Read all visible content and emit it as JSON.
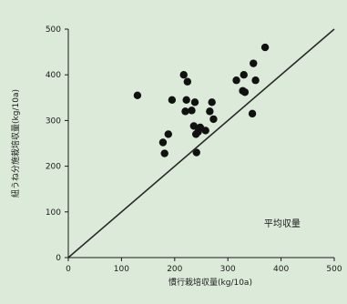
{
  "chart_data": {
    "type": "scatter",
    "title": "",
    "xlabel": "慣行栽培収量(kg/10a)",
    "ylabel": "紐うね分施栽培収量(kg/10a)",
    "xlim": [
      0,
      500
    ],
    "ylim": [
      0,
      500
    ],
    "x_ticks": [
      "0",
      "100",
      "200",
      "300",
      "400",
      "500"
    ],
    "y_ticks": [
      "0",
      "100",
      "200",
      "300",
      "400",
      "500"
    ],
    "grid": false,
    "reference_line": {
      "from": [
        0,
        0
      ],
      "to": [
        500,
        500
      ]
    },
    "annotation": "平均収量",
    "colors": {
      "background": "#dcebd9",
      "points": "#111111",
      "line": "#2a2a2a"
    },
    "points": [
      {
        "x": 130,
        "y": 355
      },
      {
        "x": 178,
        "y": 252
      },
      {
        "x": 181,
        "y": 228
      },
      {
        "x": 188,
        "y": 270
      },
      {
        "x": 195,
        "y": 345
      },
      {
        "x": 217,
        "y": 400
      },
      {
        "x": 220,
        "y": 320
      },
      {
        "x": 222,
        "y": 345
      },
      {
        "x": 224,
        "y": 385
      },
      {
        "x": 232,
        "y": 322
      },
      {
        "x": 236,
        "y": 288
      },
      {
        "x": 238,
        "y": 340
      },
      {
        "x": 240,
        "y": 270
      },
      {
        "x": 241,
        "y": 230
      },
      {
        "x": 244,
        "y": 275
      },
      {
        "x": 248,
        "y": 285
      },
      {
        "x": 258,
        "y": 278
      },
      {
        "x": 266,
        "y": 320
      },
      {
        "x": 270,
        "y": 340
      },
      {
        "x": 273,
        "y": 303
      },
      {
        "x": 316,
        "y": 388
      },
      {
        "x": 328,
        "y": 365
      },
      {
        "x": 330,
        "y": 400
      },
      {
        "x": 332,
        "y": 362
      },
      {
        "x": 346,
        "y": 315
      },
      {
        "x": 348,
        "y": 425
      },
      {
        "x": 352,
        "y": 388
      },
      {
        "x": 370,
        "y": 460
      }
    ]
  }
}
